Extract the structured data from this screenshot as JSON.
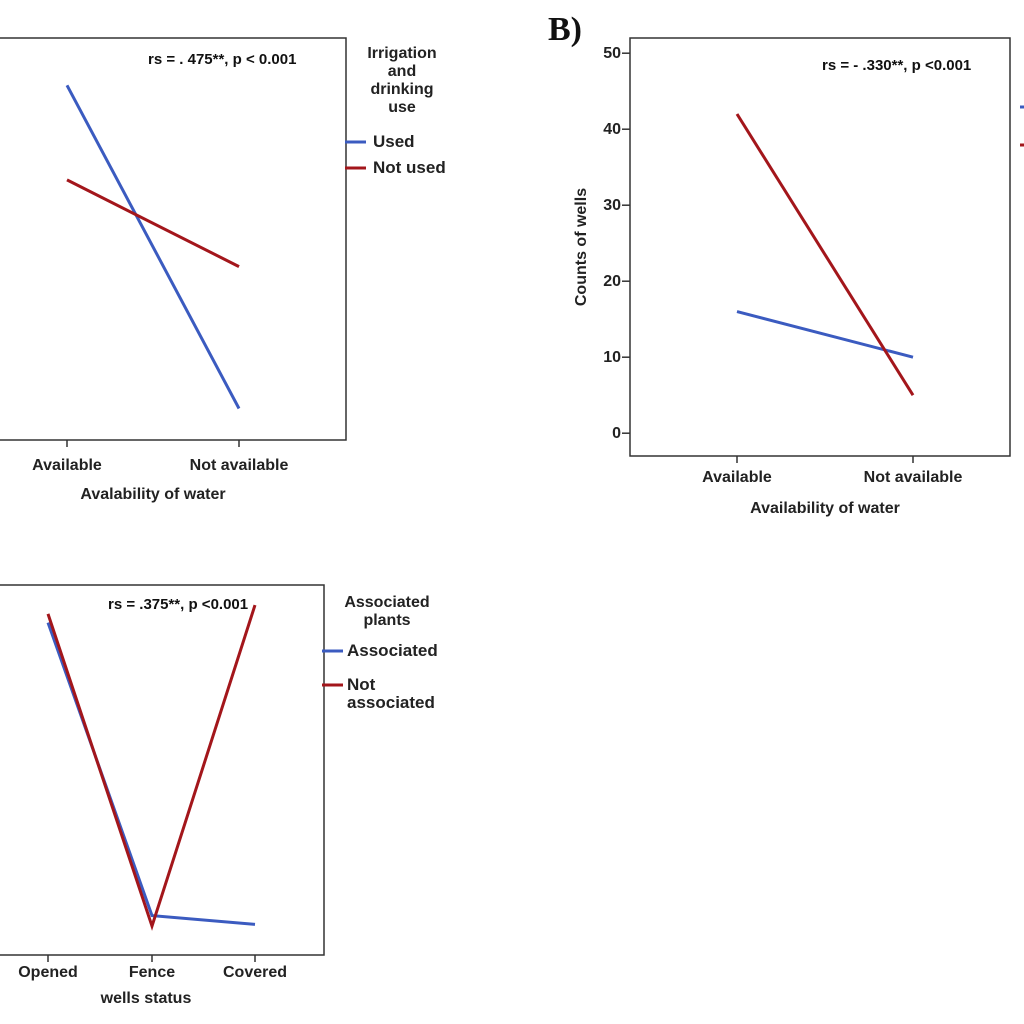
{
  "colors": {
    "series_a": "#3b5bc0",
    "series_b": "#a3161b"
  },
  "chart_data": [
    {
      "type": "line",
      "panel_label": "",
      "annotation": "rs = . 475**, p < 0.001",
      "xlabel": "Avalability of water",
      "ylabel": "",
      "categories": [
        "Available",
        "Not available"
      ],
      "legend_title": [
        "Irrigation",
        "and",
        "drinking",
        "use"
      ],
      "legend_position": "right",
      "series": [
        {
          "name": "Used",
          "color": "#3b5bc0",
          "values": [
            44,
            3
          ]
        },
        {
          "name": "Not used",
          "color": "#a3161b",
          "values": [
            32,
            21
          ]
        }
      ],
      "ylim": [
        -1,
        50
      ],
      "show_y_ticks": false,
      "grid": false
    },
    {
      "type": "line",
      "panel_label": "B)",
      "annotation": "rs = - .330**, p <0.001",
      "xlabel": "Availability of water",
      "ylabel": "Counts of wells",
      "categories": [
        "Available",
        "Not available"
      ],
      "yticks": [
        0,
        10,
        20,
        30,
        40,
        50
      ],
      "series": [
        {
          "name": "",
          "color": "#3b5bc0",
          "values": [
            16,
            10
          ]
        },
        {
          "name": "",
          "color": "#a3161b",
          "values": [
            42,
            5
          ]
        }
      ],
      "ylim": [
        -3,
        52
      ],
      "show_y_ticks": true,
      "grid": false
    },
    {
      "type": "line",
      "panel_label": "",
      "annotation": "rs = .375**, p <0.001",
      "xlabel": "wells status",
      "ylabel": "",
      "categories": [
        "Opened",
        "Fence",
        "Covered"
      ],
      "legend_title": [
        "Associated",
        "plants"
      ],
      "legend_position": "right",
      "series": [
        {
          "name": [
            "Associated"
          ],
          "color": "#3b5bc0",
          "values": [
            38,
            4.5,
            3.5
          ]
        },
        {
          "name": [
            "Not",
            "associated"
          ],
          "color": "#a3161b",
          "values": [
            39,
            3.3,
            40
          ]
        }
      ],
      "ylim": [
        0,
        42.3
      ],
      "show_y_ticks": false,
      "grid": false
    }
  ]
}
